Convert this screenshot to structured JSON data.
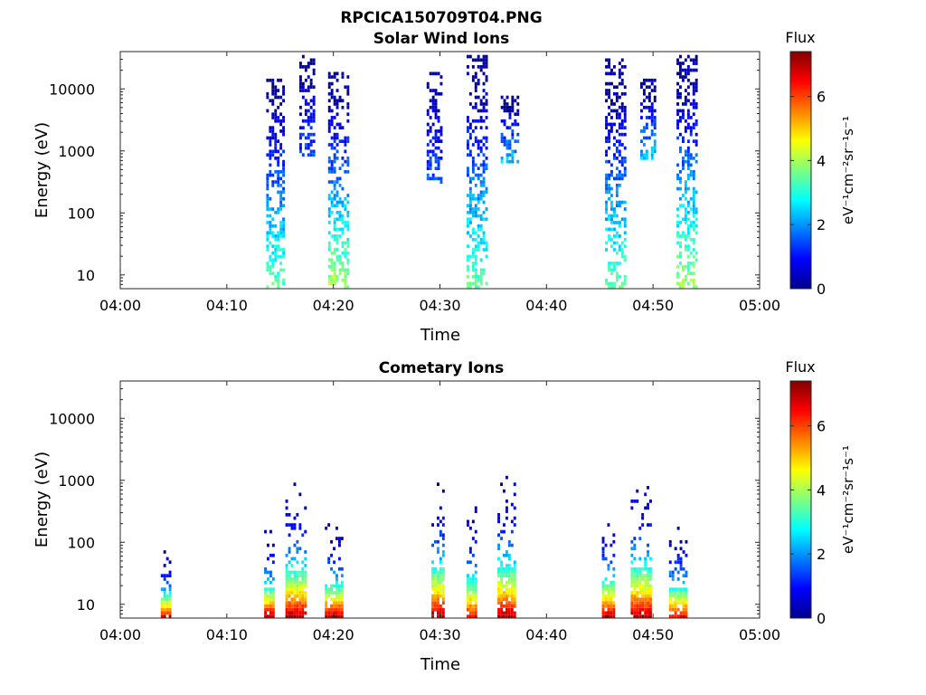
{
  "figure": {
    "title": "RPCICA150709T04.PNG"
  },
  "chart_data": [
    {
      "type": "heatmap",
      "title": "Solar Wind Ions",
      "xlabel": "Time",
      "ylabel": "Energy (eV)",
      "x_ticks": [
        "04:00",
        "04:10",
        "04:20",
        "04:30",
        "04:40",
        "04:50",
        "05:00"
      ],
      "x_range_minutes": [
        0,
        60
      ],
      "y_scale": "log",
      "y_ticks": [
        10,
        100,
        1000,
        10000
      ],
      "y_tick_labels": [
        "10",
        "100",
        "1000",
        "10000"
      ],
      "y_range": [
        6,
        40000
      ],
      "colorbar": {
        "label": "Flux",
        "units_label": "eV⁻¹cm⁻²sr⁻¹s⁻¹",
        "range": [
          0,
          7.4
        ],
        "ticks": [
          0,
          2,
          4,
          6
        ],
        "colormap": "jet"
      },
      "bursts": [
        {
          "time_min": 14.5,
          "width_min": 1.6,
          "e_min": 6,
          "e_max": 15000,
          "peak_value": 3.5
        },
        {
          "time_min": 17.5,
          "width_min": 1.4,
          "e_min": 800,
          "e_max": 35000,
          "peak_value": 1.5
        },
        {
          "time_min": 20.5,
          "width_min": 2.0,
          "e_min": 6,
          "e_max": 20000,
          "peak_value": 4.0
        },
        {
          "time_min": 29.5,
          "width_min": 1.5,
          "e_min": 300,
          "e_max": 20000,
          "peak_value": 1.5
        },
        {
          "time_min": 33.5,
          "width_min": 2.0,
          "e_min": 6,
          "e_max": 35000,
          "peak_value": 3.5
        },
        {
          "time_min": 36.5,
          "width_min": 1.6,
          "e_min": 600,
          "e_max": 8000,
          "peak_value": 2.5
        },
        {
          "time_min": 46.5,
          "width_min": 2.0,
          "e_min": 6,
          "e_max": 30000,
          "peak_value": 3.5
        },
        {
          "time_min": 49.5,
          "width_min": 1.4,
          "e_min": 700,
          "e_max": 15000,
          "peak_value": 2.5
        },
        {
          "time_min": 53.2,
          "width_min": 2.0,
          "e_min": 6,
          "e_max": 35000,
          "peak_value": 4.0
        }
      ]
    },
    {
      "type": "heatmap",
      "title": "Cometary Ions",
      "xlabel": "Time",
      "ylabel": "Energy (eV)",
      "x_ticks": [
        "04:00",
        "04:10",
        "04:20",
        "04:30",
        "04:40",
        "04:50",
        "05:00"
      ],
      "x_range_minutes": [
        0,
        60
      ],
      "y_scale": "log",
      "y_ticks": [
        10,
        100,
        1000,
        10000
      ],
      "y_tick_labels": [
        "10",
        "100",
        "1000",
        "10000"
      ],
      "y_range": [
        6,
        40000
      ],
      "colorbar": {
        "label": "Flux",
        "units_label": "eV⁻¹cm⁻²sr⁻¹s⁻¹",
        "range": [
          0,
          7.4
        ],
        "ticks": [
          0,
          2,
          4,
          6
        ],
        "colormap": "jet"
      },
      "bursts": [
        {
          "time_min": 4.2,
          "width_min": 0.8,
          "e_min": 6,
          "e_max": 70,
          "peak_value": 7.0
        },
        {
          "time_min": 14.0,
          "width_min": 1.0,
          "e_min": 6,
          "e_max": 160,
          "peak_value": 7.0
        },
        {
          "time_min": 16.5,
          "width_min": 2.0,
          "e_min": 6,
          "e_max": 900,
          "peak_value": 7.0
        },
        {
          "time_min": 20.0,
          "width_min": 1.6,
          "e_min": 6,
          "e_max": 200,
          "peak_value": 7.0
        },
        {
          "time_min": 29.8,
          "width_min": 1.2,
          "e_min": 6,
          "e_max": 1100,
          "peak_value": 7.0
        },
        {
          "time_min": 33.0,
          "width_min": 1.0,
          "e_min": 6,
          "e_max": 400,
          "peak_value": 6.5
        },
        {
          "time_min": 36.2,
          "width_min": 1.6,
          "e_min": 6,
          "e_max": 1200,
          "peak_value": 7.0
        },
        {
          "time_min": 45.8,
          "width_min": 1.2,
          "e_min": 6,
          "e_max": 300,
          "peak_value": 7.0
        },
        {
          "time_min": 48.8,
          "width_min": 1.8,
          "e_min": 6,
          "e_max": 1200,
          "peak_value": 7.0
        },
        {
          "time_min": 52.3,
          "width_min": 1.6,
          "e_min": 6,
          "e_max": 180,
          "peak_value": 6.5
        }
      ]
    }
  ]
}
